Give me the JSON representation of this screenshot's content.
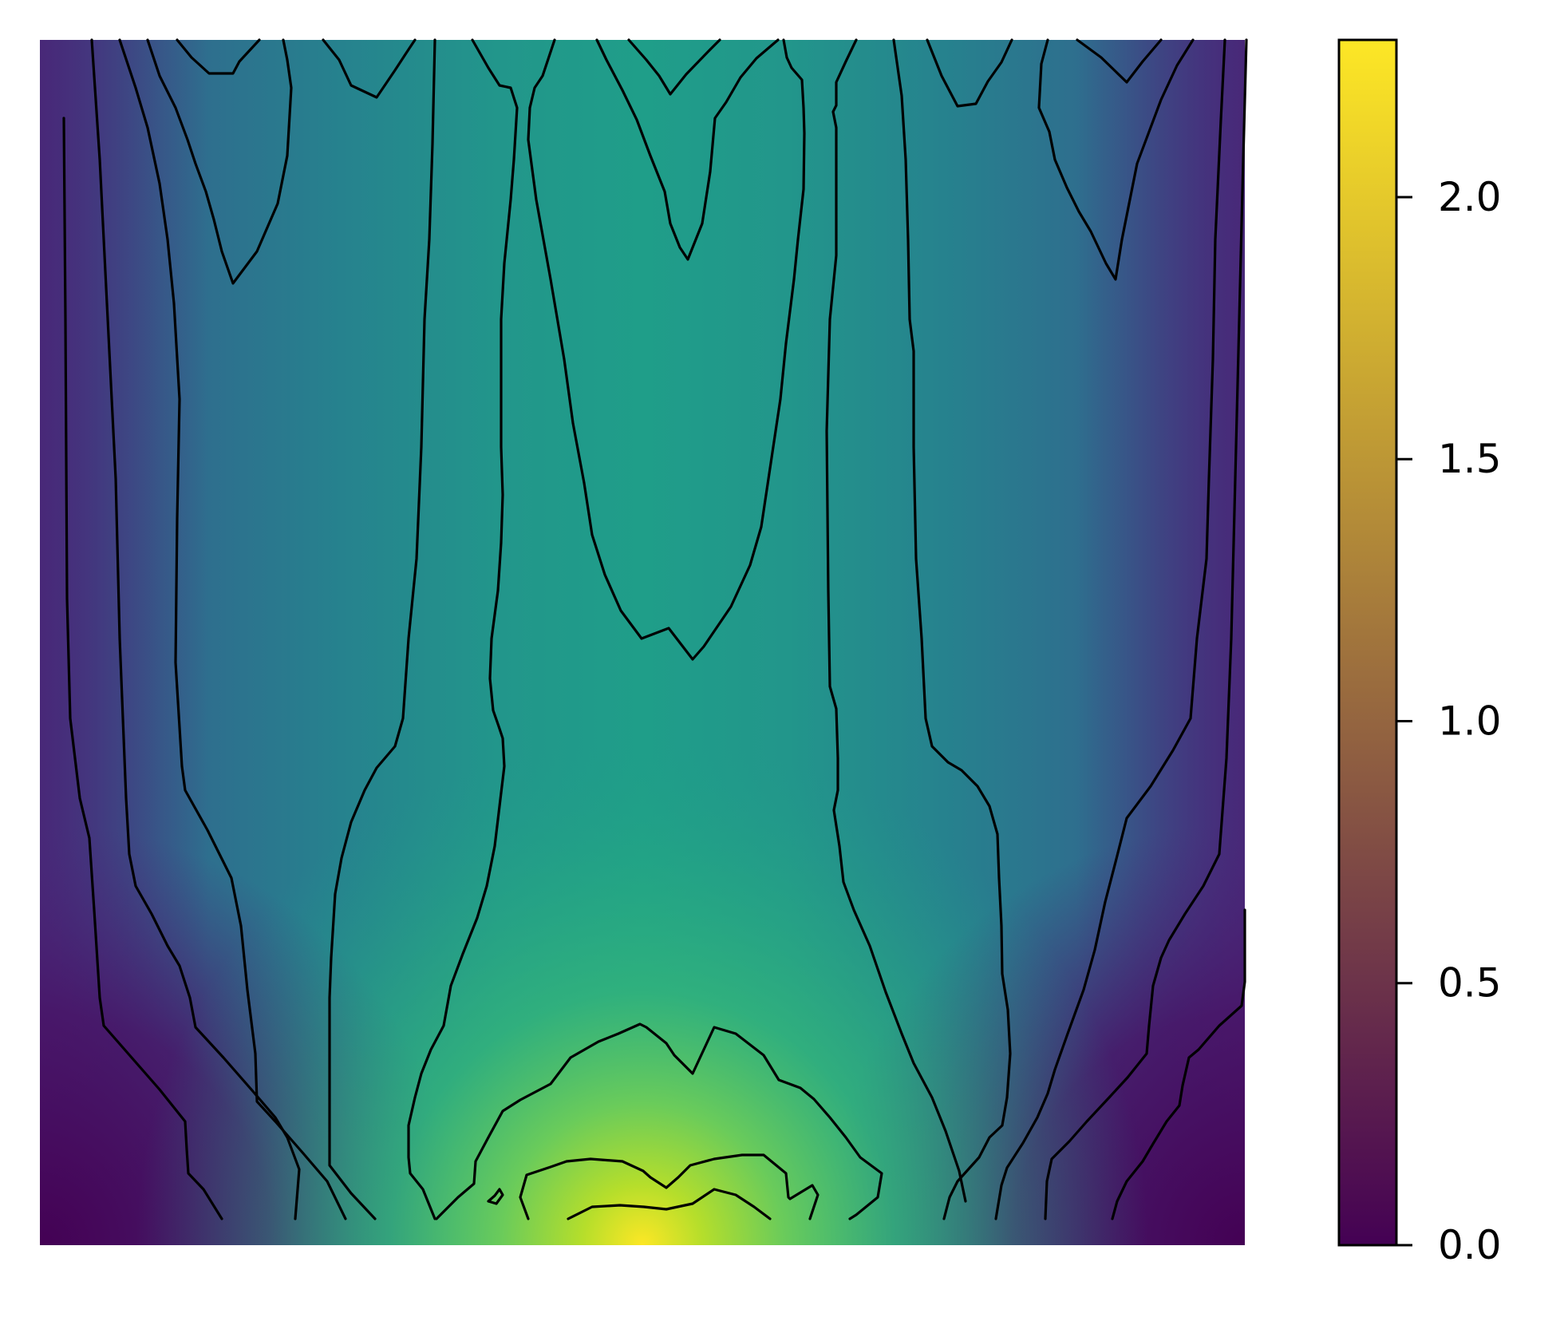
{
  "chart_data": {
    "type": "heatmap",
    "title": "",
    "xlabel": "",
    "ylabel": "",
    "axes_visible": false,
    "grid": false,
    "colormap": "viridis",
    "colormap_stops": [
      "#440154",
      "#482878",
      "#3e4989",
      "#31688e",
      "#26828e",
      "#1f9e89",
      "#35b779",
      "#6ece58",
      "#b5de2b",
      "#fde725"
    ],
    "value_range": [
      0.0,
      2.3
    ],
    "description_of_field": "value rises toward the bottom-center (peak ~2.3), ~1.1-1.4 in the central column, lowest (~0) at bottom corners",
    "colorbar": {
      "position": "right",
      "ticks": [
        0.0,
        0.5,
        1.0,
        1.5,
        2.0
      ],
      "tick_labels": [
        "0.0",
        "0.5",
        "1.0",
        "1.5",
        "2.0"
      ]
    },
    "contour_color": "#000000"
  }
}
